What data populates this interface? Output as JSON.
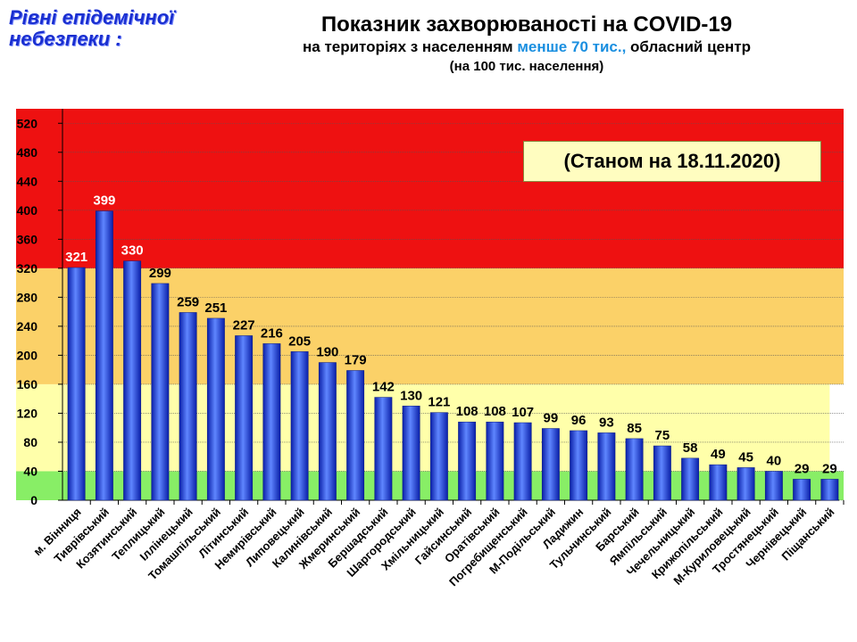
{
  "header": {
    "levels_line1": "Рівні епідемічної",
    "levels_line2": "небезпеки :",
    "title": "Показник захворюваності на COVID-19",
    "subtitle_pre": "на територіях з населенням ",
    "subtitle_accent": "менше 70 тис.,",
    "subtitle_post": " обласний центр",
    "subtitle2": "(на 100  тис. населення)"
  },
  "date_label": "(Станом на 18.11.2020)",
  "colors": {
    "red_zone": "#ee1111",
    "orange_zone": "#fbd168",
    "yellow_zone": "#ffffaa",
    "green_zone": "#88ee66",
    "bar": "#1d3ee0",
    "bar_highlight": "#5f86ff",
    "value_on_red": "#ffffff",
    "value_default": "#000000"
  },
  "chart_data": {
    "type": "bar",
    "title": "Показник захворюваності на COVID-19",
    "ylim": [
      0,
      540
    ],
    "yticks": [
      0,
      40,
      80,
      120,
      160,
      200,
      240,
      280,
      320,
      360,
      400,
      440,
      480,
      520
    ],
    "grid": true,
    "zones": [
      {
        "from": 0,
        "to": 40,
        "color": "#88ee66"
      },
      {
        "from": 40,
        "to": 160,
        "color": "#ffffaa"
      },
      {
        "from": 160,
        "to": 320,
        "color": "#fbd168"
      },
      {
        "from": 320,
        "to": 540,
        "color": "#ee1111"
      }
    ],
    "categories": [
      "м. Вінниця",
      "Тиврівський",
      "Козятинський",
      "Теплицький",
      "Іллінецький",
      "Томашпільський",
      "Літинський",
      "Немирівський",
      "Липовецький",
      "Калинівський",
      "Жмеринський",
      "Бершадський",
      "Шаргородський",
      "Хмільницький",
      "Гайсинський",
      "Оратівський",
      "Погребищенський",
      "М-Подільський",
      "Ладижин",
      "Тульчинський",
      "Барський",
      "Ямпільський",
      "Чечельницький",
      "Крижопільський",
      "М-Куриловецький",
      "Тростянецький",
      "Чернівецький",
      "Піщанський"
    ],
    "values": [
      321,
      399,
      330,
      299,
      259,
      251,
      227,
      216,
      205,
      190,
      179,
      142,
      130,
      121,
      108,
      108,
      107,
      99,
      96,
      93,
      85,
      75,
      58,
      49,
      45,
      40,
      29,
      29
    ]
  }
}
